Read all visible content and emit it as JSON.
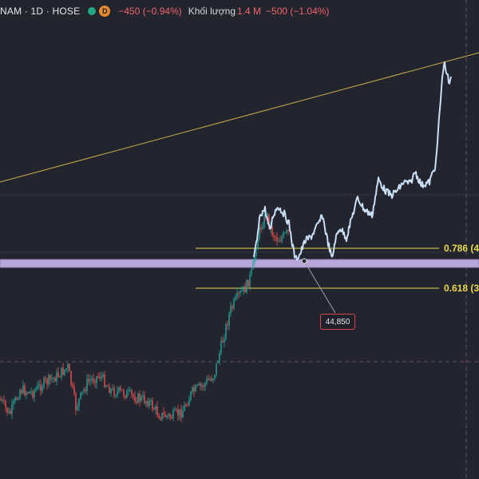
{
  "header": {
    "symbol": "NAM · 1D · HOSE",
    "badge": "D",
    "change": "−450 (−0.94%)",
    "volume_label": "Khối lượng",
    "volume_value": "1.4 M",
    "volume_change": "−500 (−1.04%)"
  },
  "fib_levels": [
    {
      "ratio": "0.786",
      "label": "0.786 (4"
    },
    {
      "ratio": "0.618",
      "label": "0.618 (3"
    }
  ],
  "price_tag": "44,850",
  "colors": {
    "background": "#22242e",
    "up": "#26a69a",
    "down": "#ef5350",
    "fib": "#e8d94a",
    "highlight": "#b9a6d8",
    "trendline": "#c9b04a",
    "price_line": "#c9def5"
  }
}
